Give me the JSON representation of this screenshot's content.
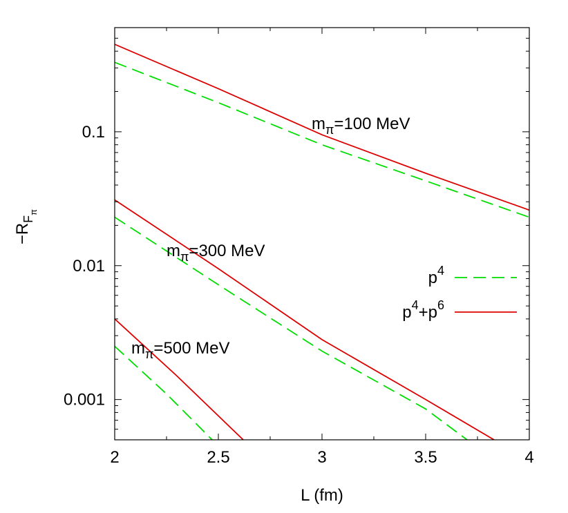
{
  "chart_data": {
    "type": "line",
    "xlabel": "L (fm)",
    "ylabel": "-R_{F_π}",
    "xlim": [
      2,
      4
    ],
    "ylim": [
      0.0005,
      0.6
    ],
    "yscale": "log",
    "grid": false,
    "legend_position": "right",
    "x_ticks": [
      2,
      2.5,
      3,
      3.5,
      4
    ],
    "x_tick_labels": [
      "2",
      "2.5",
      "3",
      "3.5",
      "4"
    ],
    "y_ticks": [
      0.001,
      0.01,
      0.1
    ],
    "y_tick_labels": [
      "0.001",
      "0.01",
      "0.1"
    ],
    "legend": [
      {
        "series_key": "p4",
        "base": "p",
        "sup": "4",
        "color": "#00dd00",
        "dash": "dashed"
      },
      {
        "series_key": "p4p6",
        "base": "p",
        "sup": "4",
        "mid": "+p",
        "sup2": "6",
        "color": "#dd0000",
        "dash": "solid"
      }
    ],
    "annotations": [
      {
        "label": "m",
        "sub": "π",
        "rest": "=100 MeV",
        "x": 2.95,
        "y": 0.105
      },
      {
        "label": "m",
        "sub": "π",
        "rest": "=300 MeV",
        "x": 2.25,
        "y": 0.0118
      },
      {
        "label": "m",
        "sub": "π",
        "rest": "=500 MeV",
        "x": 2.08,
        "y": 0.0022
      }
    ],
    "series": [
      {
        "name": "p^4",
        "group": "m_π=100 MeV",
        "color": "#00dd00",
        "dash": "dashed",
        "x": [
          2.0,
          2.5,
          3.0,
          3.5,
          4.0
        ],
        "y": [
          0.33,
          0.165,
          0.08,
          0.043,
          0.023
        ]
      },
      {
        "name": "p^4+p^6",
        "group": "m_π=100 MeV",
        "color": "#dd0000",
        "dash": "solid",
        "x": [
          2.0,
          2.5,
          3.0,
          3.5,
          4.0
        ],
        "y": [
          0.45,
          0.21,
          0.095,
          0.049,
          0.026
        ]
      },
      {
        "name": "p^4",
        "group": "m_π=300 MeV",
        "color": "#00dd00",
        "dash": "dashed",
        "x": [
          2.0,
          2.5,
          3.0,
          3.5,
          3.7
        ],
        "y": [
          0.023,
          0.0072,
          0.0023,
          0.00085,
          0.0005
        ]
      },
      {
        "name": "p^4+p^6",
        "group": "m_π=300 MeV",
        "color": "#dd0000",
        "dash": "solid",
        "x": [
          2.0,
          2.5,
          3.0,
          3.5,
          3.83
        ],
        "y": [
          0.031,
          0.0095,
          0.0028,
          0.001,
          0.0005
        ]
      },
      {
        "name": "p^4",
        "group": "m_π=500 MeV",
        "color": "#00dd00",
        "dash": "dashed",
        "x": [
          2.0,
          2.25,
          2.47
        ],
        "y": [
          0.0025,
          0.0011,
          0.0005
        ]
      },
      {
        "name": "p^4+p^6",
        "group": "m_π=500 MeV",
        "color": "#dd0000",
        "dash": "solid",
        "x": [
          2.0,
          2.3,
          2.62
        ],
        "y": [
          0.004,
          0.0015,
          0.0005
        ]
      }
    ]
  }
}
